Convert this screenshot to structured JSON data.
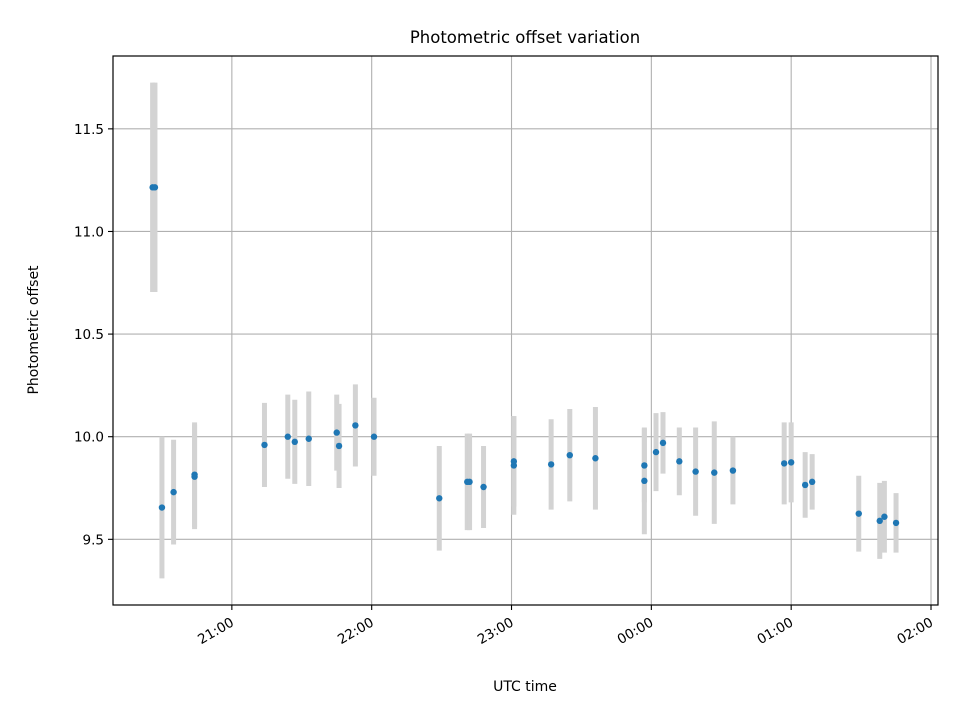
{
  "chart_data": {
    "type": "scatter",
    "title": "Photometric offset variation",
    "xlabel": "UTC time",
    "ylabel": "Photometric offset",
    "xlim": [
      "20:09",
      "26:03"
    ],
    "ylim": [
      9.18,
      11.855
    ],
    "x_ticks": [
      "21:00",
      "22:00",
      "23:00",
      "00:00",
      "01:00",
      "02:00"
    ],
    "y_ticks": [
      "9.5",
      "10.0",
      "10.5",
      "11.0",
      "11.5"
    ],
    "grid": true,
    "colors": {
      "point": "#1f77b4",
      "errorbar": "#d3d3d3",
      "grid": "#b0b0b0",
      "axes": "#000000"
    },
    "series": [
      {
        "points": [
          {
            "time": "20:26",
            "y": 11.215,
            "err": 0.51
          },
          {
            "time": "20:27",
            "y": 11.215,
            "err": 0.51
          },
          {
            "time": "20:30",
            "y": 9.655,
            "err": 0.345
          },
          {
            "time": "20:35",
            "y": 9.73,
            "err": 0.255
          },
          {
            "time": "20:44",
            "y": 9.815,
            "err": 0.255
          },
          {
            "time": "20:44",
            "y": 9.805,
            "err": 0.255
          },
          {
            "time": "21:14",
            "y": 9.96,
            "err": 0.205
          },
          {
            "time": "21:24",
            "y": 10.0,
            "err": 0.205
          },
          {
            "time": "21:27",
            "y": 9.975,
            "err": 0.205
          },
          {
            "time": "21:33",
            "y": 9.99,
            "err": 0.23
          },
          {
            "time": "21:45",
            "y": 10.02,
            "err": 0.185
          },
          {
            "time": "21:46",
            "y": 9.955,
            "err": 0.205
          },
          {
            "time": "21:53",
            "y": 10.055,
            "err": 0.2
          },
          {
            "time": "22:01",
            "y": 10.0,
            "err": 0.19
          },
          {
            "time": "22:29",
            "y": 9.7,
            "err": 0.255
          },
          {
            "time": "22:41",
            "y": 9.78,
            "err": 0.235
          },
          {
            "time": "22:42",
            "y": 9.78,
            "err": 0.235
          },
          {
            "time": "22:48",
            "y": 9.755,
            "err": 0.2
          },
          {
            "time": "23:01",
            "y": 9.86,
            "err": 0.24
          },
          {
            "time": "23:01",
            "y": 9.88,
            "err": 0.22
          },
          {
            "time": "23:17",
            "y": 9.865,
            "err": 0.22
          },
          {
            "time": "23:25",
            "y": 9.91,
            "err": 0.225
          },
          {
            "time": "23:36",
            "y": 9.895,
            "err": 0.25
          },
          {
            "time": "23:57",
            "y": 9.785,
            "err": 0.26
          },
          {
            "time": "23:57",
            "y": 9.86,
            "err": 0.18
          },
          {
            "time": "24:02",
            "y": 9.925,
            "err": 0.19
          },
          {
            "time": "24:05",
            "y": 9.97,
            "err": 0.15
          },
          {
            "time": "24:12",
            "y": 9.88,
            "err": 0.165
          },
          {
            "time": "24:19",
            "y": 9.83,
            "err": 0.215
          },
          {
            "time": "24:27",
            "y": 9.825,
            "err": 0.25
          },
          {
            "time": "24:35",
            "y": 9.835,
            "err": 0.165
          },
          {
            "time": "24:57",
            "y": 9.87,
            "err": 0.2
          },
          {
            "time": "25:00",
            "y": 9.875,
            "err": 0.195
          },
          {
            "time": "25:06",
            "y": 9.765,
            "err": 0.16
          },
          {
            "time": "25:09",
            "y": 9.78,
            "err": 0.135
          },
          {
            "time": "25:29",
            "y": 9.625,
            "err": 0.185
          },
          {
            "time": "25:38",
            "y": 9.59,
            "err": 0.185
          },
          {
            "time": "25:40",
            "y": 9.61,
            "err": 0.175
          },
          {
            "time": "25:45",
            "y": 9.58,
            "err": 0.145
          }
        ]
      }
    ]
  }
}
